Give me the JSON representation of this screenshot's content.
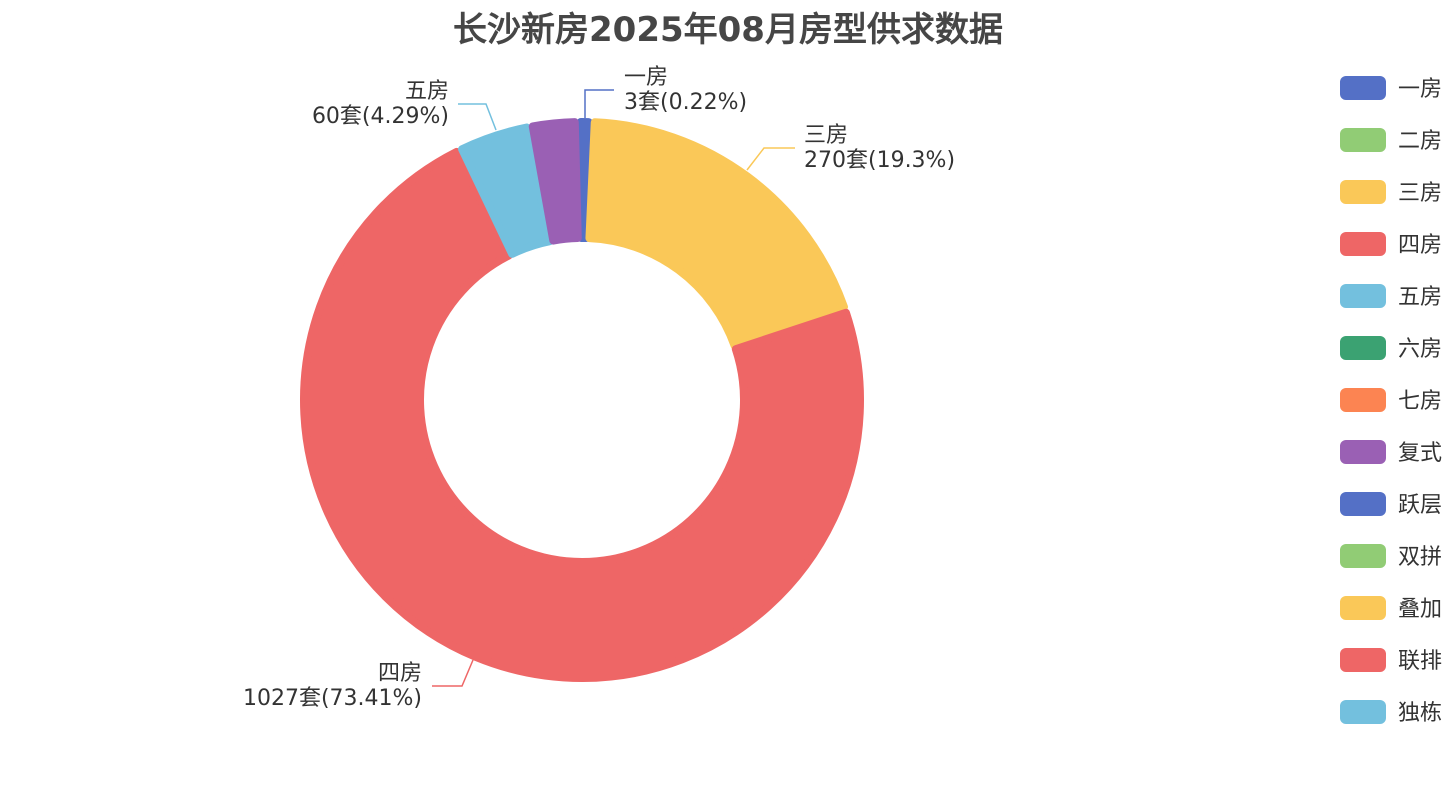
{
  "title": "长沙新房2025年08月房型供求数据",
  "chart_data": {
    "type": "pie",
    "variant": "donut",
    "title": "长沙新房2025年08月房型供求数据",
    "unit": "套",
    "slices": [
      {
        "name": "一房",
        "value": 3,
        "percent": "0.22%",
        "color": "#5470c6",
        "label": "3套(0.22%)"
      },
      {
        "name": "三房",
        "value": 270,
        "percent": "19.3%",
        "color": "#fac858",
        "label": "270套(19.3%)"
      },
      {
        "name": "四房",
        "value": 1027,
        "percent": "73.41%",
        "color": "#ee6666",
        "label": "1027套(73.41%)"
      },
      {
        "name": "五房",
        "value": 60,
        "percent": "4.29%",
        "color": "#73c0de",
        "label": "60套(4.29%)"
      },
      {
        "name": "复式",
        "value": 39,
        "percent": "",
        "color": "#9a60b4",
        "label": ""
      }
    ],
    "legend": {
      "placement": "right",
      "items": [
        {
          "name": "一房",
          "color": "#5470c6"
        },
        {
          "name": "二房",
          "color": "#91cc75"
        },
        {
          "name": "三房",
          "color": "#fac858"
        },
        {
          "name": "四房",
          "color": "#ee6666"
        },
        {
          "name": "五房",
          "color": "#73c0de"
        },
        {
          "name": "六房",
          "color": "#3ba272"
        },
        {
          "name": "七房",
          "color": "#fc8452"
        },
        {
          "name": "复式",
          "color": "#9a60b4"
        },
        {
          "name": "跃层",
          "color": "#5470c6"
        },
        {
          "name": "双拼",
          "color": "#91cc75"
        },
        {
          "name": "叠加",
          "color": "#fac858"
        },
        {
          "name": "联排",
          "color": "#ee6666"
        },
        {
          "name": "独栋",
          "color": "#73c0de"
        }
      ]
    }
  }
}
